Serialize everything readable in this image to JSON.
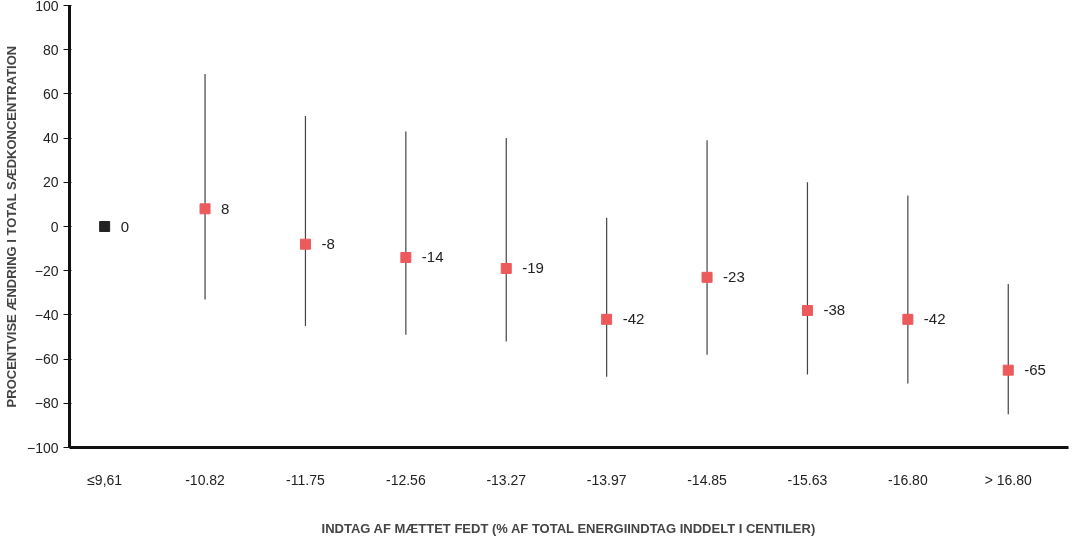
{
  "chart_data": {
    "type": "scatter",
    "xlabel": "INDTAG AF MÆTTET FEDT (% AF TOTAL ENERGIINDTAG INDDELT I CENTILER)",
    "ylabel": "PROCENTVISE ÆNDRING I TOTAL SÆDKONCENTRATION",
    "categories": [
      "≤9,61",
      "-10.82",
      "-11.75",
      "-12.56",
      "-13.27",
      "-13.97",
      "-14.85",
      "-15.63",
      "-16.80",
      "> 16.80"
    ],
    "values": [
      0,
      8,
      -8,
      -14,
      -19,
      -42,
      -23,
      -38,
      -42,
      -65
    ],
    "colors": [
      "#222222",
      "#ec5a5c",
      "#ec5a5c",
      "#ec5a5c",
      "#ec5a5c",
      "#ec5a5c",
      "#ec5a5c",
      "#ec5a5c",
      "#ec5a5c",
      "#ec5a5c"
    ],
    "errors": [
      null,
      [
        -33,
        69
      ],
      [
        -45,
        50
      ],
      [
        -49,
        43
      ],
      [
        -52,
        40
      ],
      [
        -68,
        4
      ],
      [
        -58,
        39
      ],
      [
        -67,
        20
      ],
      [
        -71,
        14
      ],
      [
        -85,
        -26
      ]
    ],
    "ylim": [
      -100,
      100
    ],
    "yticks": [
      -100,
      -80,
      -60,
      -40,
      -20,
      0,
      20,
      40,
      60,
      80,
      100
    ],
    "marker": "square",
    "data_labels": true,
    "grid": false
  }
}
